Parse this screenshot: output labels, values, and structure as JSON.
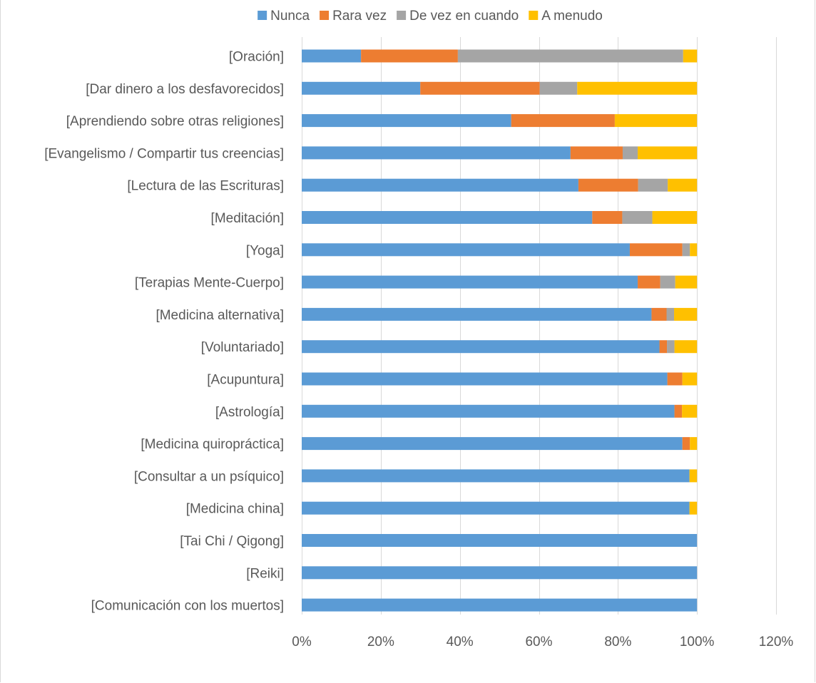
{
  "chart_data": {
    "type": "bar",
    "orientation": "horizontal",
    "stacked": true,
    "legend_position": "top",
    "grid": "vertical",
    "categories": [
      "[Oración]",
      "[Dar dinero a los desfavorecidos]",
      "[Aprendiendo sobre otras religiones]",
      "[Evangelismo / Compartir tus creencias]",
      "[Lectura de las Escrituras]",
      "[Meditación]",
      "[Yoga]",
      "[Terapias Mente-Cuerpo]",
      "[Medicina alternativa]",
      "[Voluntariado]",
      "[Acupuntura]",
      "[Astrología]",
      "[Medicina quiropráctica]",
      "[Consultar a un psíquico]",
      "[Medicina china]",
      "[Tai Chi / Qigong]",
      "[Reiki]",
      "[Comunicación con los muertos]"
    ],
    "series": [
      {
        "name": "Nunca",
        "color": "#5B9BD5",
        "values": [
          0.15,
          0.3,
          0.53,
          0.68,
          0.7,
          0.735,
          0.83,
          0.85,
          0.885,
          0.905,
          0.925,
          0.943,
          0.963,
          0.981,
          0.981,
          1.0,
          1.0,
          1.0
        ]
      },
      {
        "name": "Rara vez",
        "color": "#ED7D31",
        "values": [
          0.245,
          0.302,
          0.262,
          0.132,
          0.151,
          0.076,
          0.133,
          0.057,
          0.038,
          0.019,
          0.038,
          0.019,
          0.019,
          0.0,
          0.0,
          0.0,
          0.0,
          0.0
        ]
      },
      {
        "name": "De vez en cuando",
        "color": "#A5A5A5",
        "values": [
          0.57,
          0.095,
          0.0,
          0.038,
          0.075,
          0.076,
          0.019,
          0.038,
          0.019,
          0.019,
          0.0,
          0.0,
          0.0,
          0.0,
          0.0,
          0.0,
          0.0,
          0.0
        ]
      },
      {
        "name": "A menudo",
        "color": "#FFC000",
        "values": [
          0.035,
          0.303,
          0.208,
          0.15,
          0.074,
          0.113,
          0.018,
          0.055,
          0.058,
          0.057,
          0.037,
          0.038,
          0.018,
          0.019,
          0.019,
          0.0,
          0.0,
          0.0
        ]
      }
    ],
    "xlim": [
      0,
      1.2
    ],
    "x_ticks": [
      0,
      0.2,
      0.4,
      0.6,
      0.8,
      1.0,
      1.2
    ],
    "x_tick_labels": [
      "0%",
      "20%",
      "40%",
      "60%",
      "80%",
      "100%",
      "120%"
    ],
    "gridline_color": "#d9d9d9",
    "title": "",
    "xlabel": "",
    "ylabel": ""
  }
}
